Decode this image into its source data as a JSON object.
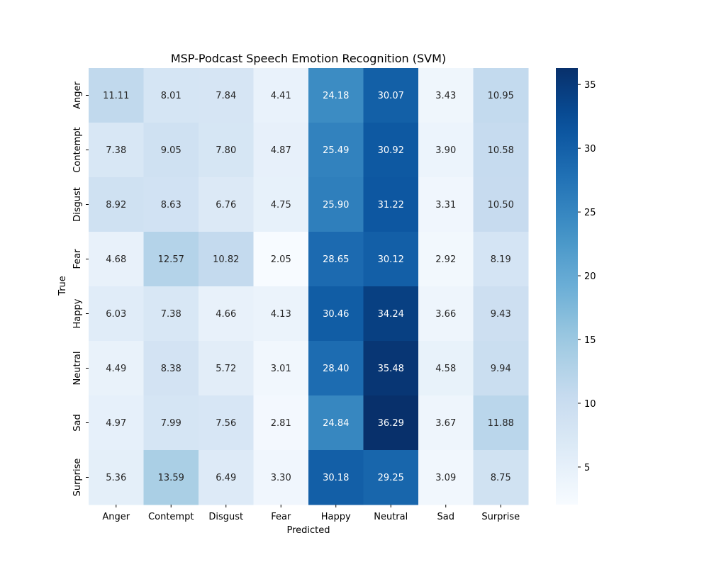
{
  "chart_data": {
    "type": "heatmap",
    "title": "MSP-Podcast Speech Emotion Recognition (SVM)",
    "xlabel": "Predicted",
    "ylabel": "True",
    "x_categories": [
      "Anger",
      "Contempt",
      "Disgust",
      "Fear",
      "Happy",
      "Neutral",
      "Sad",
      "Surprise"
    ],
    "y_categories": [
      "Anger",
      "Contempt",
      "Disgust",
      "Fear",
      "Happy",
      "Neutral",
      "Sad",
      "Surprise"
    ],
    "values": [
      [
        11.11,
        8.01,
        7.84,
        4.41,
        24.18,
        30.07,
        3.43,
        10.95
      ],
      [
        7.38,
        9.05,
        7.8,
        4.87,
        25.49,
        30.92,
        3.9,
        10.58
      ],
      [
        8.92,
        8.63,
        6.76,
        4.75,
        25.9,
        31.22,
        3.31,
        10.5
      ],
      [
        4.68,
        12.57,
        10.82,
        2.05,
        28.65,
        30.12,
        2.92,
        8.19
      ],
      [
        6.03,
        7.38,
        4.66,
        4.13,
        30.46,
        34.24,
        3.66,
        9.43
      ],
      [
        4.49,
        8.38,
        5.72,
        3.01,
        28.4,
        35.48,
        4.58,
        9.94
      ],
      [
        4.97,
        7.99,
        7.56,
        2.81,
        24.84,
        36.29,
        3.67,
        11.88
      ],
      [
        5.36,
        13.59,
        6.49,
        3.3,
        30.18,
        29.25,
        3.09,
        8.75
      ]
    ],
    "colormap": "Blues",
    "colorbar": {
      "range": [
        2.05,
        36.29
      ],
      "ticks": [
        5,
        10,
        15,
        20,
        25,
        30,
        35
      ]
    },
    "annotation_format": "0.00",
    "grid": false
  }
}
